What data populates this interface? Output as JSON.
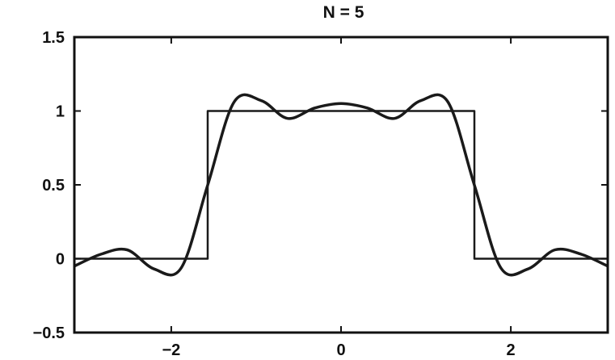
{
  "chart_data": {
    "type": "line",
    "title": "N = 5",
    "xlabel": "",
    "ylabel": "",
    "xlim": [
      -3.14159,
      3.14159
    ],
    "ylim": [
      -0.5,
      1.5
    ],
    "x_ticks": [
      -2,
      0,
      2
    ],
    "x_tick_labels": [
      "−2",
      "0",
      "2"
    ],
    "y_ticks": [
      -0.5,
      0,
      0.5,
      1,
      1.5
    ],
    "y_tick_labels": [
      "−0.5",
      "0",
      "0.5",
      "1",
      "1.5"
    ],
    "grid": false,
    "legend": "none",
    "series": [
      {
        "kind": "square-pulse",
        "color": "#1a1a1a",
        "x": [
          -3.14159,
          -1.5708,
          -1.5708,
          1.5708,
          1.5708,
          3.14159
        ],
        "y": [
          0,
          0,
          1,
          1,
          0,
          0
        ]
      },
      {
        "kind": "fourier-approximation",
        "color": "#1a1a1a",
        "x": [
          -3.14,
          -2.83,
          -2.52,
          -2.2,
          -1.88,
          -1.57,
          -1.26,
          -0.94,
          -0.63,
          -0.31,
          0,
          0.31,
          0.63,
          0.94,
          1.26,
          1.57,
          1.88,
          2.2,
          2.52,
          2.83,
          3.14
        ],
        "y": [
          -0.05,
          0.03,
          0.06,
          -0.07,
          -0.06,
          0.5,
          1.06,
          1.07,
          0.95,
          1.02,
          1.05,
          1.02,
          0.95,
          1.07,
          1.06,
          0.5,
          -0.06,
          -0.07,
          0.06,
          0.03,
          -0.05
        ]
      }
    ]
  }
}
